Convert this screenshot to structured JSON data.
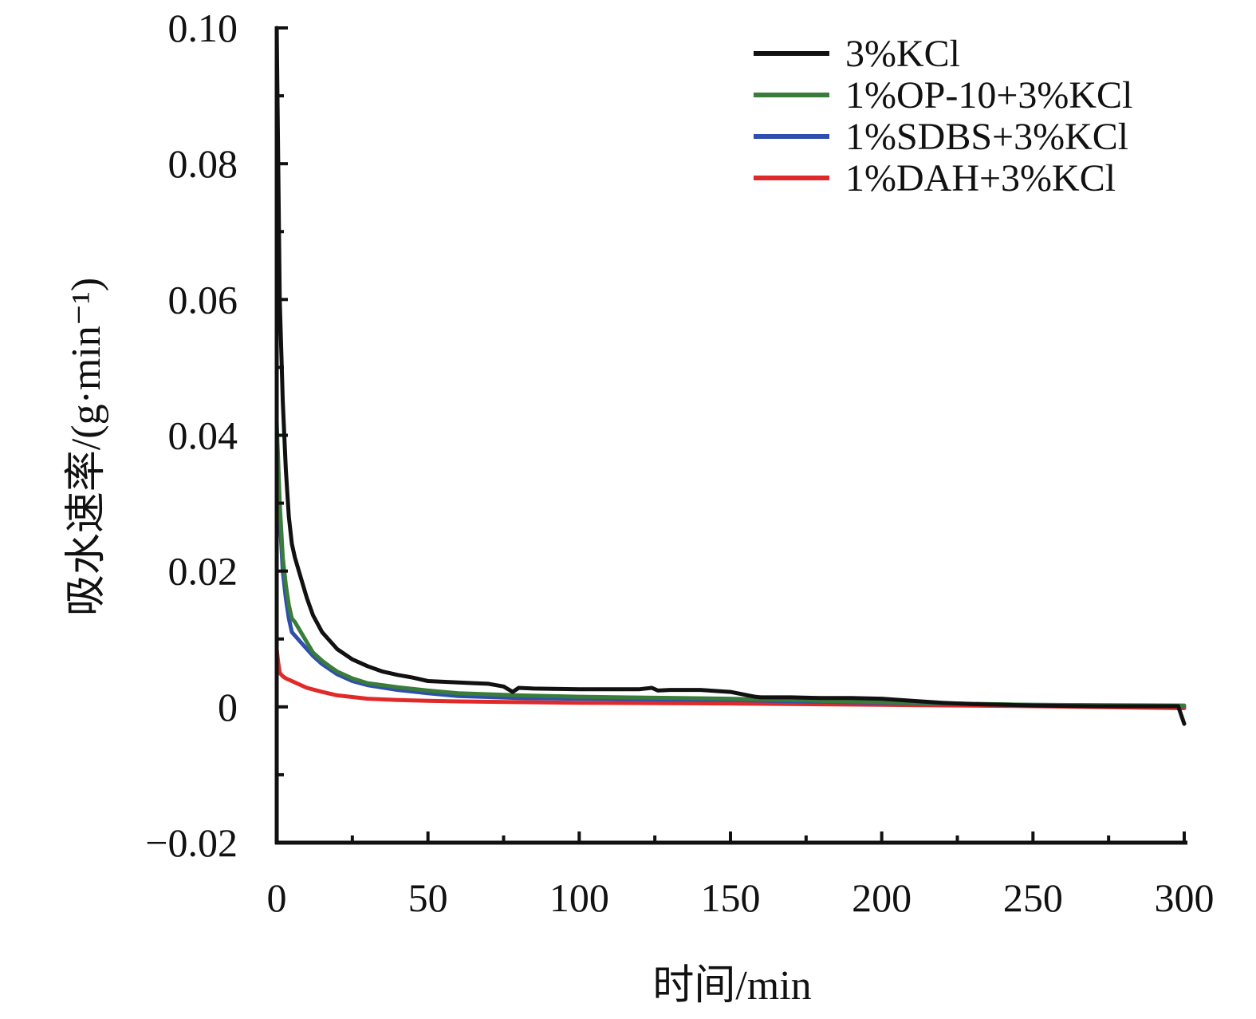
{
  "chart_data": {
    "type": "line",
    "xlabel": "时间/min",
    "ylabel": "吸水速率/(g·min⁻¹)",
    "xlim": [
      0,
      300
    ],
    "ylim": [
      -0.02,
      0.1
    ],
    "xticks": [
      0,
      50,
      100,
      150,
      200,
      250,
      300
    ],
    "xtick_labels": [
      "0",
      "50",
      "100",
      "150",
      "200",
      "250",
      "300"
    ],
    "yticks": [
      -0.02,
      0,
      0.02,
      0.04,
      0.06,
      0.08,
      0.1
    ],
    "ytick_labels": [
      "−0.02",
      "0",
      "0.02",
      "0.04",
      "0.06",
      "0.08",
      "0.10"
    ],
    "legend_position": "top-right",
    "grid": false,
    "series": [
      {
        "name": "3%KCl",
        "color": "#111111",
        "x": [
          0,
          0.5,
          1,
          2,
          3,
          4,
          5,
          6,
          8,
          10,
          12,
          15,
          18,
          20,
          25,
          30,
          35,
          40,
          45,
          50,
          55,
          60,
          65,
          70,
          75,
          78,
          80,
          85,
          100,
          120,
          124,
          126,
          130,
          140,
          150,
          158,
          160,
          170,
          180,
          190,
          200,
          210,
          220,
          230,
          250,
          270,
          290,
          298,
          300
        ],
        "y": [
          0.1,
          0.08,
          0.06,
          0.045,
          0.035,
          0.028,
          0.024,
          0.022,
          0.019,
          0.016,
          0.0135,
          0.011,
          0.0095,
          0.0085,
          0.007,
          0.006,
          0.0052,
          0.0047,
          0.0043,
          0.0038,
          0.0037,
          0.0036,
          0.0035,
          0.0034,
          0.003,
          0.0022,
          0.0028,
          0.0027,
          0.0026,
          0.0026,
          0.0028,
          0.0024,
          0.0025,
          0.0025,
          0.0022,
          0.0015,
          0.0014,
          0.0014,
          0.0013,
          0.0013,
          0.0012,
          0.0009,
          0.0006,
          0.0004,
          0.0002,
          0.0001,
          0.0001,
          0.0001,
          -0.0025
        ]
      },
      {
        "name": "1%OP-10+3%KCl",
        "color": "#3a7d3a",
        "x": [
          0,
          0.5,
          1,
          2,
          3,
          4,
          5,
          6,
          8,
          10,
          12,
          15,
          18,
          20,
          25,
          30,
          40,
          50,
          60,
          80,
          100,
          150,
          200,
          250,
          300
        ],
        "y": [
          0.042,
          0.036,
          0.03,
          0.022,
          0.018,
          0.015,
          0.013,
          0.0125,
          0.011,
          0.0095,
          0.008,
          0.0068,
          0.0058,
          0.0052,
          0.0042,
          0.0035,
          0.0029,
          0.0024,
          0.002,
          0.0017,
          0.0015,
          0.0012,
          0.0007,
          0.0003,
          0.0002
        ]
      },
      {
        "name": "1%SDBS+3%KCl",
        "color": "#2e4fae",
        "x": [
          0,
          0.5,
          1,
          2,
          3,
          4,
          5,
          6,
          8,
          10,
          12,
          15,
          18,
          20,
          25,
          30,
          40,
          50,
          60,
          80,
          100,
          150,
          200,
          250,
          300
        ],
        "y": [
          0.04,
          0.034,
          0.028,
          0.02,
          0.016,
          0.013,
          0.011,
          0.0105,
          0.0095,
          0.0085,
          0.0075,
          0.0063,
          0.0054,
          0.0048,
          0.0038,
          0.0032,
          0.0025,
          0.002,
          0.0016,
          0.0013,
          0.0012,
          0.001,
          0.0006,
          0.0003,
          0.0001
        ]
      },
      {
        "name": "1%DAH+3%KCl",
        "color": "#e02a2a",
        "x": [
          0,
          0.5,
          1,
          2,
          3,
          5,
          8,
          10,
          15,
          20,
          30,
          40,
          50,
          60,
          80,
          100,
          150,
          200,
          250,
          300
        ],
        "y": [
          0.0085,
          0.0065,
          0.005,
          0.0045,
          0.0042,
          0.0038,
          0.0032,
          0.0028,
          0.0022,
          0.0017,
          0.0012,
          0.001,
          0.0009,
          0.0008,
          0.0007,
          0.0006,
          0.0005,
          0.0003,
          0.0001,
          -0.0002
        ]
      }
    ]
  }
}
